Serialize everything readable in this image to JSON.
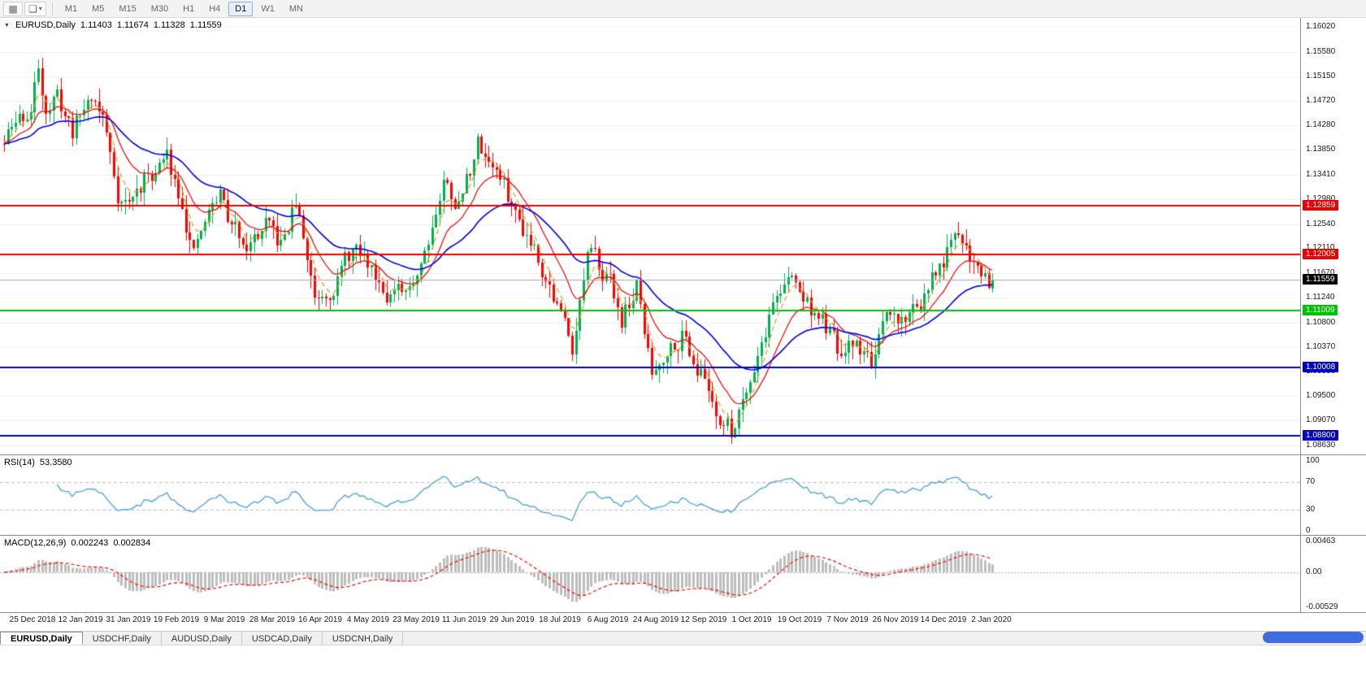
{
  "toolbar": {
    "icon_buttons": [
      {
        "glyph": "▦"
      },
      {
        "glyph": "❏",
        "caret": "▾"
      }
    ],
    "timeframes": [
      {
        "label": "M1",
        "active": false
      },
      {
        "label": "M5",
        "active": false
      },
      {
        "label": "M15",
        "active": false
      },
      {
        "label": "M30",
        "active": false
      },
      {
        "label": "H1",
        "active": false
      },
      {
        "label": "H4",
        "active": false
      },
      {
        "label": "D1",
        "active": true
      },
      {
        "label": "W1",
        "active": false
      },
      {
        "label": "MN",
        "active": false
      }
    ]
  },
  "main_chart": {
    "header": {
      "marker": "▼",
      "symbol": "EURUSD,Daily",
      "open": "1.11403",
      "high": "1.11674",
      "low": "1.11328",
      "close": "1.11559"
    },
    "price_axis": [
      "1.16020",
      "1.15580",
      "1.15150",
      "1.14720",
      "1.14280",
      "1.13850",
      "1.13410",
      "1.12980",
      "1.12540",
      "1.12110",
      "1.11670",
      "1.11240",
      "1.10800",
      "1.10370",
      "1.09930",
      "1.09500",
      "1.09070",
      "1.08630"
    ],
    "levels": [
      {
        "label": "1.12859",
        "value": 1.12859,
        "color": "#ee0000"
      },
      {
        "label": "1.12005",
        "value": 1.12005,
        "color": "#ee0000"
      },
      {
        "label": "1.11009",
        "value": 1.11009,
        "color": "#00c400"
      },
      {
        "label": "1.10008",
        "value": 1.10008,
        "color": "#0000c8"
      },
      {
        "label": "1.08800",
        "value": 1.088,
        "color": "#0000c8"
      }
    ],
    "current_price": {
      "label": "1.11559",
      "value": 1.11559,
      "color": "#000000"
    }
  },
  "rsi": {
    "name": "RSI(14)",
    "value": "53.3580",
    "axis": [
      {
        "label": "100",
        "value": 100
      },
      {
        "label": "70",
        "value": 70
      },
      {
        "label": "30",
        "value": 30
      },
      {
        "label": "0",
        "value": 0
      }
    ],
    "dashed_levels": [
      70,
      30
    ]
  },
  "macd": {
    "name": "MACD(12,26,9)",
    "value_main": "0.002243",
    "value_signal": "0.002834",
    "axis": [
      {
        "label": "0.00463",
        "value": 0.00463
      },
      {
        "label": "0.00",
        "value": 0
      },
      {
        "label": "-0.00529",
        "value": -0.00529
      }
    ]
  },
  "time_axis": [
    "25 Dec 2018",
    "12 Jan 2019",
    "31 Jan 2019",
    "19 Feb 2019",
    "9 Mar 2019",
    "28 Mar 2019",
    "16 Apr 2019",
    "4 May 2019",
    "23 May 2019",
    "11 Jun 2019",
    "29 Jun 2019",
    "18 Jul 2019",
    "6 Aug 2019",
    "24 Aug 2019",
    "12 Sep 2019",
    "1 Oct 2019",
    "19 Oct 2019",
    "7 Nov 2019",
    "26 Nov 2019",
    "14 Dec 2019",
    "2 Jan 2020"
  ],
  "tabs": [
    {
      "label": "EURUSD,Daily",
      "active": true
    },
    {
      "label": "USDCHF,Daily",
      "active": false
    },
    {
      "label": "AUDUSD,Daily",
      "active": false
    },
    {
      "label": "USDCAD,Daily",
      "active": false
    },
    {
      "label": "USDCNH,Daily",
      "active": false
    }
  ],
  "chart_data": {
    "type": "candlestick",
    "symbol": "EURUSD",
    "timeframe": "D1",
    "title": "EURUSD,Daily",
    "visible_price_range": [
      1.0863,
      1.1602
    ],
    "first_visible_date": "25 Dec 2018",
    "last_visible_date": "2 Jan 2020",
    "last_candle_ohlc": [
      1.11403,
      1.11674,
      1.11328,
      1.11559
    ],
    "horizontal_levels": [
      1.12859,
      1.12005,
      1.11009,
      1.10008,
      1.088
    ],
    "indicators": [
      {
        "name": "RSI",
        "period": 14,
        "current": 53.358,
        "levels": [
          30,
          70
        ]
      },
      {
        "name": "MACD",
        "params": [
          12,
          26,
          9
        ],
        "current": [
          0.002243,
          0.002834
        ]
      }
    ],
    "candle_count": 262,
    "trend_anchors": [
      [
        0,
        1.1395
      ],
      [
        4,
        1.144
      ],
      [
        7,
        1.1452
      ],
      [
        9,
        1.153
      ],
      [
        11,
        1.1465
      ],
      [
        14,
        1.1475
      ],
      [
        18,
        1.142
      ],
      [
        23,
        1.1485
      ],
      [
        26,
        1.1445
      ],
      [
        30,
        1.131
      ],
      [
        33,
        1.129
      ],
      [
        38,
        1.134
      ],
      [
        43,
        1.137
      ],
      [
        47,
        1.1305
      ],
      [
        50,
        1.1195
      ],
      [
        53,
        1.1255
      ],
      [
        57,
        1.131
      ],
      [
        60,
        1.1245
      ],
      [
        65,
        1.1225
      ],
      [
        69,
        1.1245
      ],
      [
        73,
        1.121
      ],
      [
        77,
        1.129
      ],
      [
        82,
        1.113
      ],
      [
        87,
        1.1155
      ],
      [
        92,
        1.1205
      ],
      [
        97,
        1.1175
      ],
      [
        101,
        1.1145
      ],
      [
        106,
        1.1115
      ],
      [
        111,
        1.1215
      ],
      [
        116,
        1.133
      ],
      [
        120,
        1.129
      ],
      [
        125,
        1.1395
      ],
      [
        129,
        1.1365
      ],
      [
        135,
        1.127
      ],
      [
        140,
        1.1225
      ],
      [
        145,
        1.113
      ],
      [
        150,
        1.1045
      ],
      [
        154,
        1.1195
      ],
      [
        159,
        1.117
      ],
      [
        163,
        1.109
      ],
      [
        167,
        1.114
      ],
      [
        171,
        1.0985
      ],
      [
        175,
        1.104
      ],
      [
        179,
        1.1065
      ],
      [
        184,
        1.0995
      ],
      [
        188,
        1.093
      ],
      [
        192,
        1.0885
      ],
      [
        196,
        1.0975
      ],
      [
        200,
        1.105
      ],
      [
        204,
        1.1135
      ],
      [
        208,
        1.1155
      ],
      [
        212,
        1.1115
      ],
      [
        217,
        1.107
      ],
      [
        221,
        1.101
      ],
      [
        225,
        1.104
      ],
      [
        229,
        1.1015
      ],
      [
        233,
        1.107
      ],
      [
        237,
        1.1085
      ],
      [
        241,
        1.111
      ],
      [
        245,
        1.115
      ],
      [
        249,
        1.12
      ],
      [
        253,
        1.1225
      ],
      [
        257,
        1.118
      ],
      [
        261,
        1.1156
      ]
    ],
    "generation": {
      "seed": 11,
      "noise": 0.004,
      "wick": 0.0024
    },
    "moving_averages": [
      {
        "period": 5,
        "color": "#d8a018",
        "style": "dash"
      },
      {
        "period": 13,
        "color": "#ee0000",
        "style": "solid"
      },
      {
        "period": 34,
        "color": "#0000ee",
        "style": "solid"
      }
    ],
    "colors": {
      "up": "#00b050",
      "down": "#ff0000",
      "bid_line": "#a8a8a8",
      "grid": "#efefef",
      "macd_hist": "#bdbdbd",
      "macd_signal": "#ff0000",
      "rsi_line": "#4aa1de",
      "rsi_levels": "#c0c0c0"
    }
  }
}
